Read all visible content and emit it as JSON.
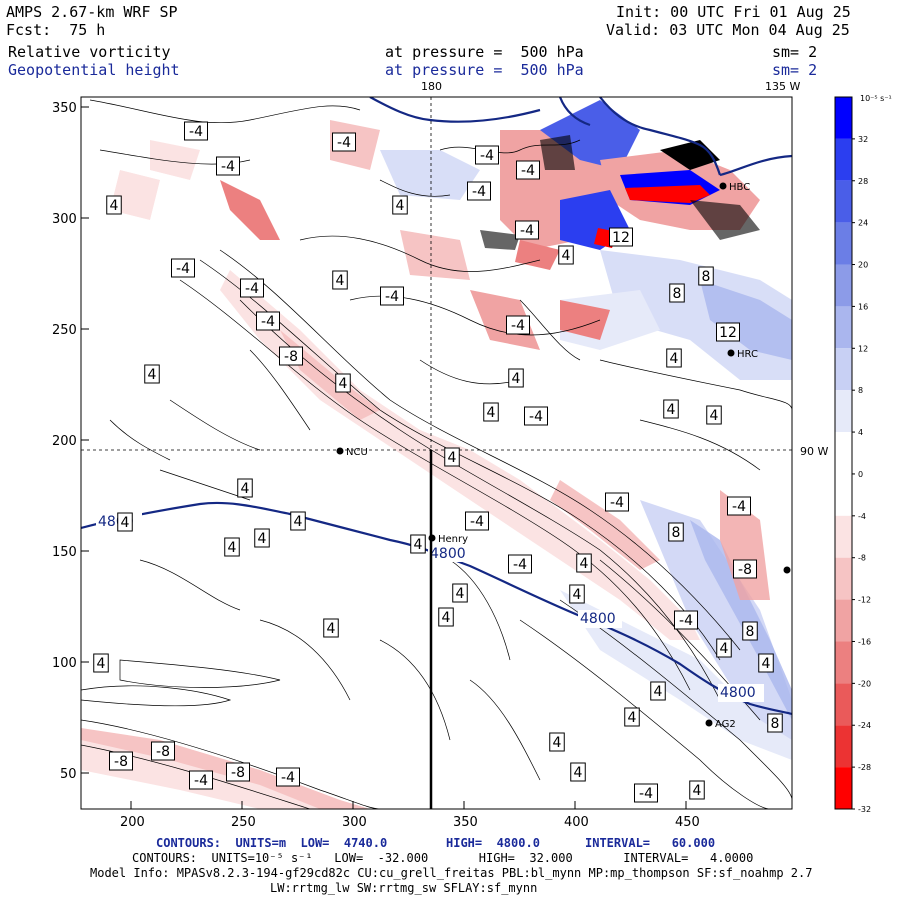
{
  "header": {
    "model": "AMPS 2.67-km WRF SP",
    "forecast": "Fcst:  75 h",
    "init": "Init: 00 UTC Fri 01 Aug 25",
    "valid": "Valid: 03 UTC Mon 04 Aug 25",
    "field1_name": "Relative vorticity",
    "field1_level": "at pressure =  500 hPa",
    "field1_sm": "sm= 2",
    "field2_name": "Geopotential height",
    "field2_level": "at pressure =  500 hPa",
    "field2_sm": "sm= 2"
  },
  "map": {
    "lon_180": "180",
    "lon_135w": "135 W",
    "lon_90w": "90 W",
    "x_ticks": [
      "200",
      "250",
      "300",
      "350",
      "400",
      "450"
    ],
    "y_ticks": [
      "350",
      "300",
      "250",
      "200",
      "150",
      "100",
      "50"
    ],
    "stations": [
      {
        "name": "NCU",
        "x": 340,
        "y": 451
      },
      {
        "name": "Henry",
        "x": 432,
        "y": 538
      },
      {
        "name": "HBC",
        "x": 723,
        "y": 186
      },
      {
        "name": "HRC",
        "x": 731,
        "y": 353
      },
      {
        "name": "AG2",
        "x": 709,
        "y": 723
      }
    ],
    "height_labels": [
      "4800",
      "4800",
      "4800",
      "4800"
    ],
    "vort_labels": [
      {
        "t": "-4",
        "x": 196,
        "y": 131
      },
      {
        "t": "-4",
        "x": 344,
        "y": 142
      },
      {
        "t": "-4",
        "x": 228,
        "y": 166
      },
      {
        "t": "-4",
        "x": 487,
        "y": 155
      },
      {
        "t": "-4",
        "x": 479,
        "y": 191
      },
      {
        "t": "-4",
        "x": 528,
        "y": 170
      },
      {
        "t": "4",
        "x": 400,
        "y": 205
      },
      {
        "t": "4",
        "x": 114,
        "y": 205
      },
      {
        "t": "-4",
        "x": 183,
        "y": 268
      },
      {
        "t": "4",
        "x": 340,
        "y": 280
      },
      {
        "t": "-4",
        "x": 252,
        "y": 288
      },
      {
        "t": "-4",
        "x": 392,
        "y": 296
      },
      {
        "t": "-4",
        "x": 268,
        "y": 321
      },
      {
        "t": "-4",
        "x": 518,
        "y": 325
      },
      {
        "t": "8",
        "x": 706,
        "y": 276
      },
      {
        "t": "8",
        "x": 677,
        "y": 293
      },
      {
        "t": "4",
        "x": 566,
        "y": 255
      },
      {
        "t": "-4",
        "x": 527,
        "y": 230
      },
      {
        "t": "12",
        "x": 621,
        "y": 237
      },
      {
        "t": "12",
        "x": 728,
        "y": 332
      },
      {
        "t": "-8",
        "x": 291,
        "y": 356
      },
      {
        "t": "4",
        "x": 152,
        "y": 374
      },
      {
        "t": "4",
        "x": 343,
        "y": 383
      },
      {
        "t": "4",
        "x": 516,
        "y": 378
      },
      {
        "t": "4",
        "x": 674,
        "y": 358
      },
      {
        "t": "4",
        "x": 491,
        "y": 412
      },
      {
        "t": "-4",
        "x": 536,
        "y": 416
      },
      {
        "t": "4",
        "x": 671,
        "y": 409
      },
      {
        "t": "4",
        "x": 714,
        "y": 415
      },
      {
        "t": "4",
        "x": 452,
        "y": 457
      },
      {
        "t": "4",
        "x": 245,
        "y": 488
      },
      {
        "t": "-4",
        "x": 617,
        "y": 502
      },
      {
        "t": "-4",
        "x": 739,
        "y": 506
      },
      {
        "t": "4",
        "x": 298,
        "y": 521
      },
      {
        "t": "-4",
        "x": 477,
        "y": 521
      },
      {
        "t": "8",
        "x": 676,
        "y": 532
      },
      {
        "t": "4",
        "x": 125,
        "y": 522
      },
      {
        "t": "4",
        "x": 262,
        "y": 538
      },
      {
        "t": "4",
        "x": 232,
        "y": 547
      },
      {
        "t": "4",
        "x": 418,
        "y": 544
      },
      {
        "t": "-4",
        "x": 520,
        "y": 564
      },
      {
        "t": "4",
        "x": 584,
        "y": 563
      },
      {
        "t": "-8",
        "x": 745,
        "y": 569
      },
      {
        "t": "4",
        "x": 460,
        "y": 593
      },
      {
        "t": "4",
        "x": 577,
        "y": 594
      },
      {
        "t": "4",
        "x": 446,
        "y": 617
      },
      {
        "t": "4",
        "x": 331,
        "y": 628
      },
      {
        "t": "-4",
        "x": 686,
        "y": 620
      },
      {
        "t": "8",
        "x": 750,
        "y": 631
      },
      {
        "t": "4",
        "x": 101,
        "y": 663
      },
      {
        "t": "4",
        "x": 724,
        "y": 648
      },
      {
        "t": "4",
        "x": 766,
        "y": 663
      },
      {
        "t": "4",
        "x": 658,
        "y": 691
      },
      {
        "t": "4",
        "x": 632,
        "y": 717
      },
      {
        "t": "8",
        "x": 775,
        "y": 723
      },
      {
        "t": "-8",
        "x": 163,
        "y": 751
      },
      {
        "t": "4",
        "x": 557,
        "y": 742
      },
      {
        "t": "-8",
        "x": 121,
        "y": 761
      },
      {
        "t": "-8",
        "x": 238,
        "y": 772
      },
      {
        "t": "-4",
        "x": 201,
        "y": 780
      },
      {
        "t": "-4",
        "x": 288,
        "y": 777
      },
      {
        "t": "4",
        "x": 578,
        "y": 772
      },
      {
        "t": "-4",
        "x": 646,
        "y": 793
      },
      {
        "t": "4",
        "x": 697,
        "y": 790
      }
    ]
  },
  "colorbar": {
    "unit": "10⁻⁵ s⁻¹",
    "labels": [
      "32",
      "28",
      "24",
      "20",
      "16",
      "12",
      "8",
      "4",
      "0",
      "-4",
      "-8",
      "-12",
      "-16",
      "-20",
      "-24",
      "-28",
      "-32"
    ],
    "colors": [
      "#0000ff",
      "#2b3ef0",
      "#4a5ee8",
      "#6b7ee6",
      "#8c9be8",
      "#aab6ee",
      "#c8d0f4",
      "#e6eaf9",
      "#ffffff",
      "#ffffff",
      "#fbe3e3",
      "#f6c4c4",
      "#f0a3a3",
      "#ec8080",
      "#ea5a5a",
      "#ec3333",
      "#ff0000"
    ]
  },
  "footer": {
    "line1_left": "CONTOURS:  UNITS=m  LOW=  4740.0",
    "line1_mid": "HIGH=  4800.0",
    "line1_right": "INTERVAL=   60.000",
    "line2": "CONTOURS:  UNITS=10⁻⁵ s⁻¹   LOW=  -32.000       HIGH=  32.000       INTERVAL=   4.0000",
    "line3": "Model Info: MPASv8.2.3-194-gf29cd82c CU:cu_grell_freitas PBL:bl_mynn MP:mp_thompson SF:sf_noahmp 2.7",
    "line4": "LW:rrtmg_lw SW:rrtmg_sw SFLAY:sf_mynn"
  }
}
